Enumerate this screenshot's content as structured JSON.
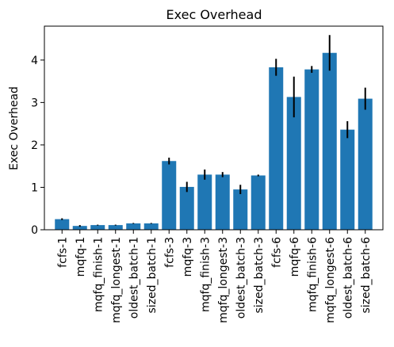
{
  "chart_data": {
    "type": "bar",
    "title": "Exec Overhead",
    "xlabel": "",
    "ylabel": "Exec Overhead",
    "ylim": [
      0,
      4.8
    ],
    "yticks": [
      0,
      1,
      2,
      3,
      4
    ],
    "grid": false,
    "bar_color": "#1f77b4",
    "errorbar_color": "#000000",
    "categories": [
      "fcfs-1",
      "mqfq-1",
      "mqfq_finish-1",
      "mqfq_longest-1",
      "oldest_batch-1",
      "sized_batch-1",
      "fcfs-3",
      "mqfq-3",
      "mqfq_finish-3",
      "mqfq_longest-3",
      "oldest_batch-3",
      "sized_batch-3",
      "fcfs-6",
      "mqfq-6",
      "mqfq_finish-6",
      "mqfq_longest-6",
      "oldest_batch-6",
      "sized_batch-6"
    ],
    "values": [
      0.25,
      0.09,
      0.11,
      0.11,
      0.15,
      0.15,
      1.62,
      1.01,
      1.3,
      1.3,
      0.95,
      1.28,
      3.83,
      3.13,
      3.78,
      4.17,
      2.36,
      3.09
    ],
    "errors": [
      0.02,
      0.02,
      0.01,
      0.01,
      0.01,
      0.01,
      0.08,
      0.12,
      0.12,
      0.06,
      0.11,
      0.02,
      0.2,
      0.48,
      0.08,
      0.42,
      0.2,
      0.26
    ]
  }
}
